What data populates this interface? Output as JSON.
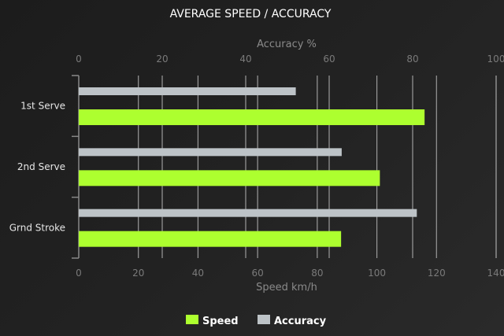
{
  "chart_data": {
    "type": "bar",
    "orientation": "horizontal",
    "title": "AVERAGE SPEED / ACCURACY",
    "categories": [
      "1st Serve",
      "2nd Serve",
      "Grnd Stroke"
    ],
    "x_top": {
      "label": "Accuracy %",
      "range": [
        0,
        100
      ],
      "ticks": [
        "0",
        "20",
        "40",
        "60",
        "80",
        "100"
      ]
    },
    "x_bottom": {
      "label": "Speed km/h",
      "range": [
        0,
        140
      ],
      "ticks": [
        "0",
        "20",
        "40",
        "60",
        "80",
        "100",
        "120",
        "140"
      ]
    },
    "series": [
      {
        "name": "Accuracy",
        "axis": "top",
        "color": "#bdc3c7",
        "values": [
          52,
          63,
          81
        ]
      },
      {
        "name": "Speed",
        "axis": "bottom",
        "color": "#adff2f",
        "values": [
          116,
          101,
          88
        ]
      }
    ],
    "grid": true,
    "legend": "bottom"
  }
}
